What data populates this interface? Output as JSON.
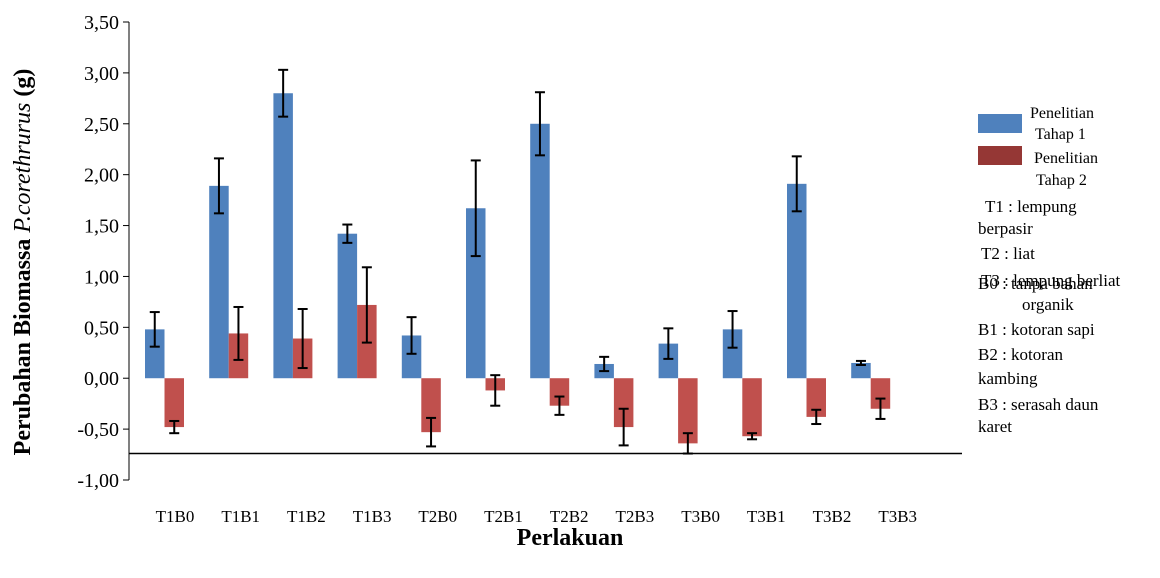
{
  "chart_data": {
    "type": "bar",
    "title": "",
    "xlabel": "Perlakuan",
    "ylabel_prefix": "Perubahan Biomassa ",
    "ylabel_italic": "P.corethrurus",
    "ylabel_suffix": " (g)",
    "ylim": [
      -1.0,
      3.5
    ],
    "yticks": [
      -1.0,
      -0.5,
      0.0,
      0.5,
      1.0,
      1.5,
      2.0,
      2.5,
      3.0,
      3.5
    ],
    "ytick_labels": [
      "-1,00",
      "-0,50",
      "0,00",
      "0,50",
      "1,00",
      "1,50",
      "2,00",
      "2,50",
      "3,00",
      "3,50"
    ],
    "grid": false,
    "legend_position": "right",
    "reference_line": -0.74,
    "categories": [
      "T1B0",
      "T1B1",
      "T1B2",
      "T1B3",
      "T2B0",
      "T2B1",
      "T2B2",
      "T2B3",
      "T3B0",
      "T3B1",
      "T3B2",
      "T3B3"
    ],
    "series": [
      {
        "name": "Penelitian Tahap 1",
        "color": "#4f81bd",
        "values": [
          0.48,
          1.89,
          2.8,
          1.42,
          0.42,
          1.67,
          2.5,
          0.14,
          0.34,
          0.48,
          1.91,
          0.15
        ],
        "errors": [
          0.17,
          0.27,
          0.23,
          0.09,
          0.18,
          0.47,
          0.31,
          0.07,
          0.15,
          0.18,
          0.27,
          0.02
        ]
      },
      {
        "name": "Penelitian Tahap 2",
        "color": "#c0504d",
        "values": [
          -0.48,
          0.44,
          0.39,
          0.72,
          -0.53,
          -0.12,
          -0.27,
          -0.48,
          -0.64,
          -0.57,
          -0.38,
          -0.3
        ],
        "errors": [
          0.06,
          0.26,
          0.29,
          0.37,
          0.14,
          0.15,
          0.09,
          0.18,
          0.1,
          0.03,
          0.07,
          0.1
        ]
      }
    ]
  },
  "legend": {
    "series1_line1": "Penelitian",
    "series1_line2": "Tahap 1",
    "series2_line1": "Penelitian",
    "series2_line2": "Tahap 2"
  },
  "notes": {
    "n1a": "T1 : lempung",
    "n1b": "berpasir",
    "n2": "T2 : liat",
    "n3a": "T3 : lempung berliat",
    "n3b": "B0 : tanpa bahan",
    "n3c": "organik",
    "n4": "B1 : kotoran sapi",
    "n5a": "B2 : kotoran",
    "n5b": "kambing",
    "n6a": "B3 : serasah daun",
    "n6b": "karet"
  }
}
